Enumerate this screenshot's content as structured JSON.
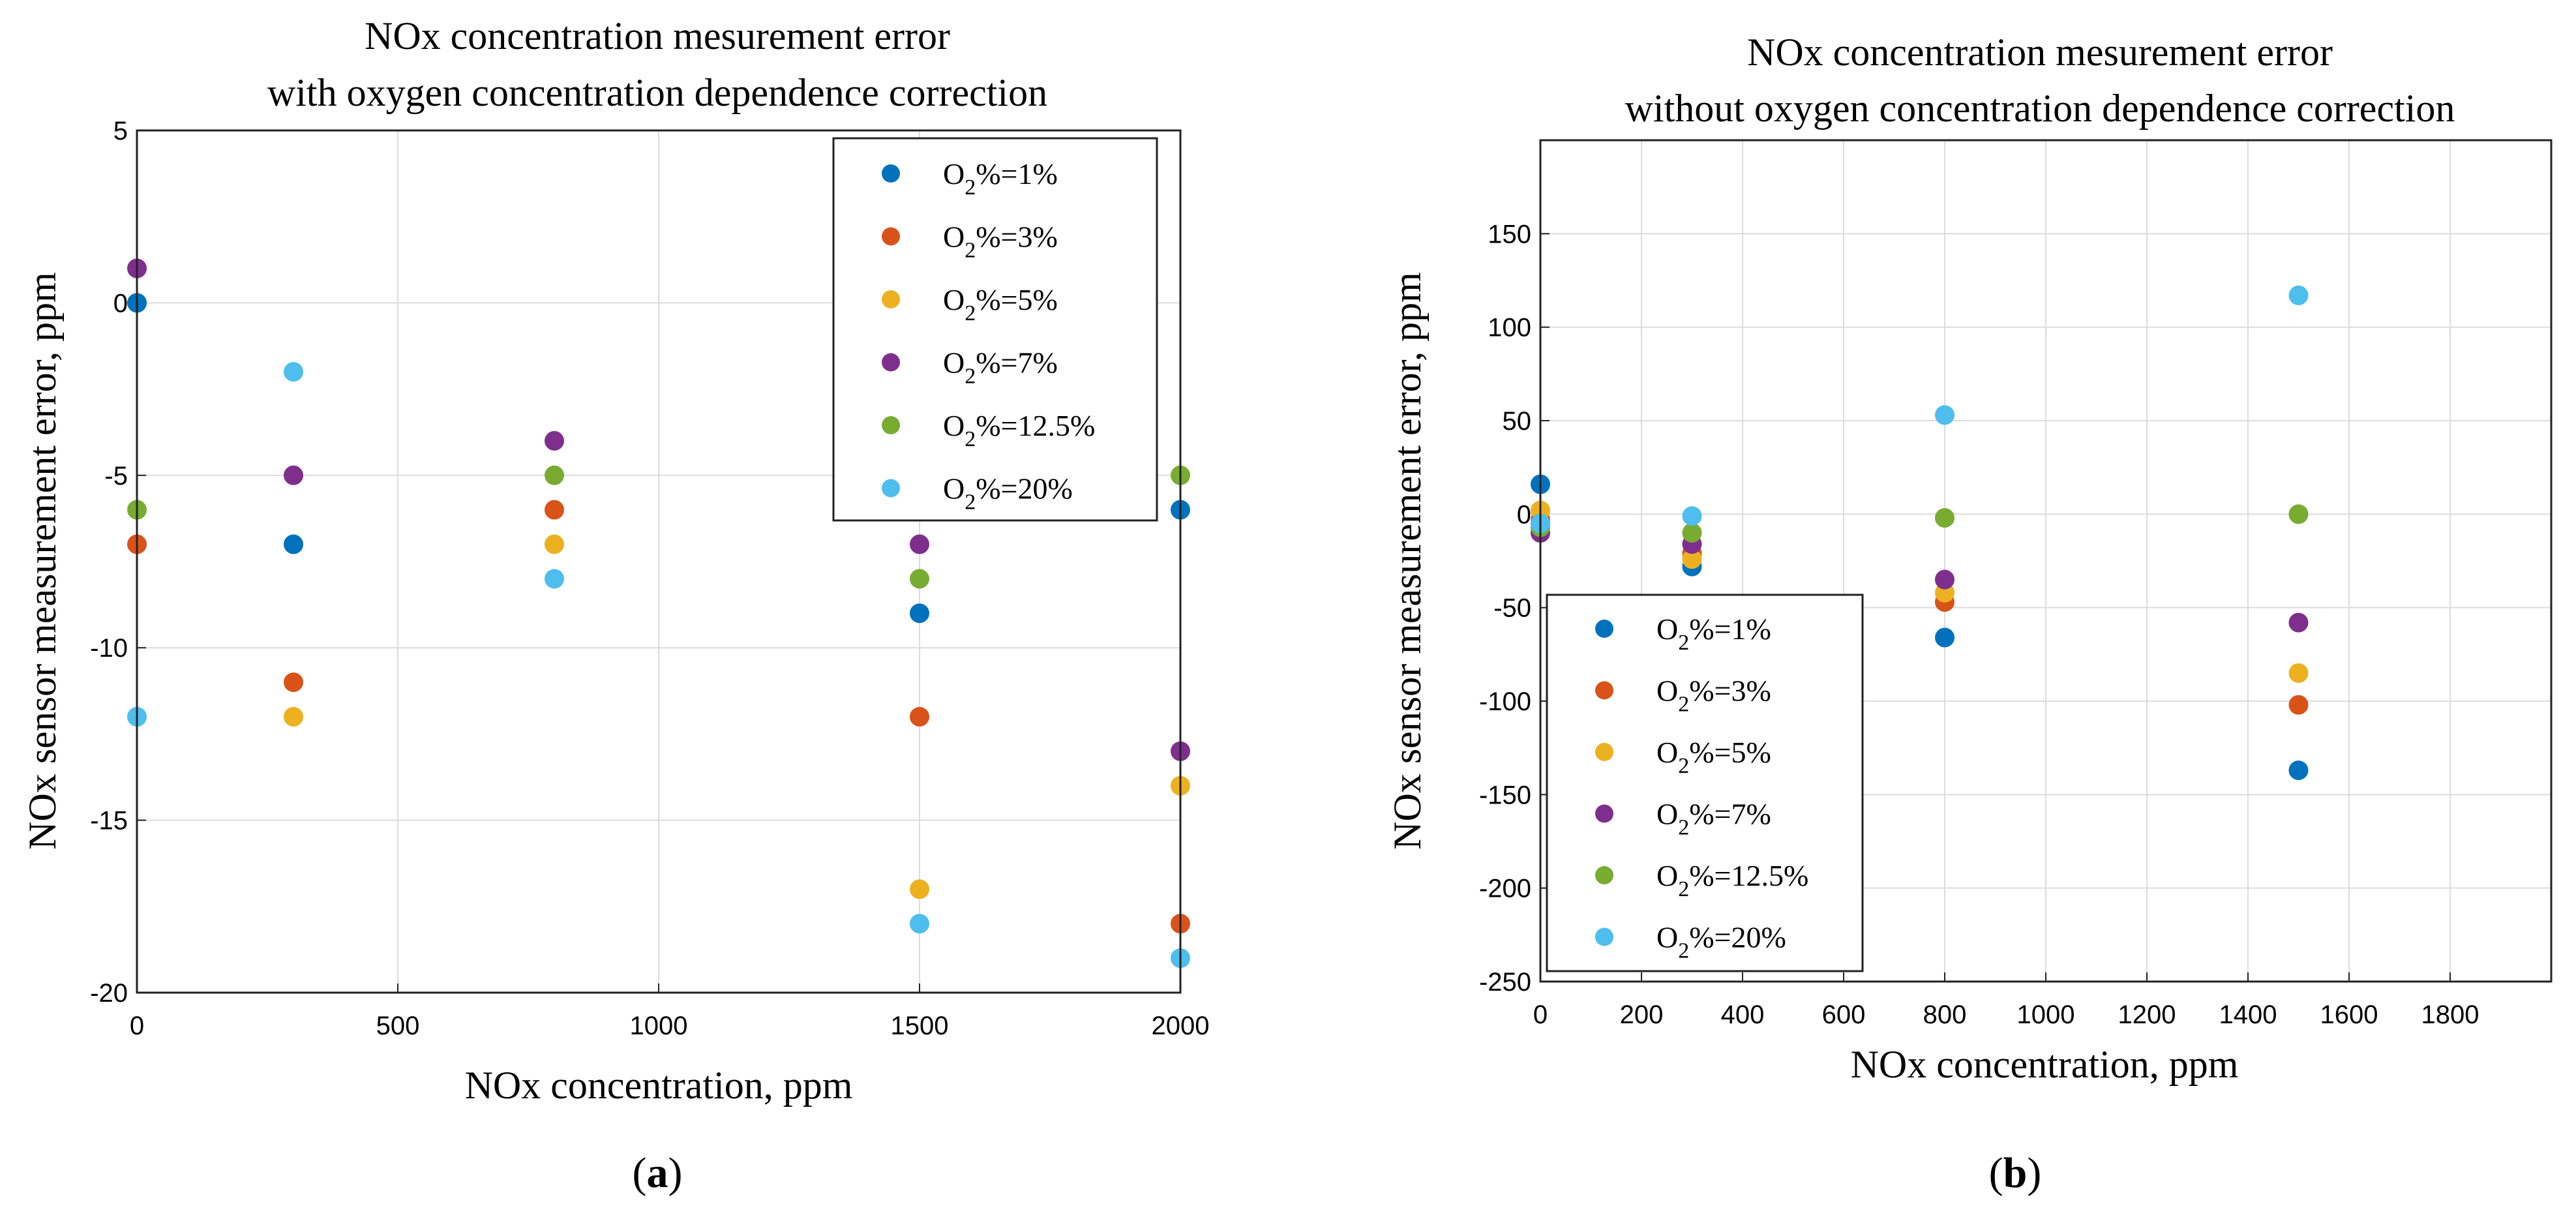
{
  "chart_data": [
    {
      "type": "scatter",
      "panel_label": "a",
      "title": [
        "NOx concentration mesurement error",
        "with oxygen concentration dependence correction"
      ],
      "xlabel": "NOx concentration, ppm",
      "ylabel": "NOx sensor measurement error, ppm",
      "xlim": [
        0,
        2000
      ],
      "ylim": [
        -20,
        5
      ],
      "xticks": [
        0,
        500,
        1000,
        1500,
        2000
      ],
      "yticks": [
        -20,
        -15,
        -10,
        -5,
        0,
        5
      ],
      "grid": true,
      "legend_position": "top-right",
      "series": [
        {
          "name": "O2%=1%",
          "label_main": "O",
          "label_sub": "2",
          "label_rest": "%=1%",
          "color": "#0072BD",
          "x": [
            0,
            300,
            1500,
            2000
          ],
          "y": [
            0,
            -7,
            -9,
            -6
          ]
        },
        {
          "name": "O2%=3%",
          "label_main": "O",
          "label_sub": "2",
          "label_rest": "%=3%",
          "color": "#D95319",
          "x": [
            0,
            300,
            800,
            1500,
            2000
          ],
          "y": [
            -7,
            -11,
            -6,
            -12,
            -18
          ]
        },
        {
          "name": "O2%=5%",
          "label_main": "O",
          "label_sub": "2",
          "label_rest": "%=5%",
          "color": "#EDB120",
          "x": [
            300,
            800,
            1500,
            2000
          ],
          "y": [
            -12,
            -7,
            -17,
            -14
          ]
        },
        {
          "name": "O2%=7%",
          "label_main": "O",
          "label_sub": "2",
          "label_rest": "%=7%",
          "color": "#7E2F8E",
          "x": [
            0,
            300,
            800,
            1500,
            2000
          ],
          "y": [
            1,
            -5,
            -4,
            -7,
            -13
          ]
        },
        {
          "name": "O2%=12.5%",
          "label_main": "O",
          "label_sub": "2",
          "label_rest": "%=12.5%",
          "color": "#77AC30",
          "x": [
            0,
            800,
            1500,
            2000
          ],
          "y": [
            -6,
            -5,
            -8,
            -5
          ]
        },
        {
          "name": "O2%=20%",
          "label_main": "O",
          "label_sub": "2",
          "label_rest": "%=20%",
          "color": "#4DBEEE",
          "x": [
            0,
            300,
            800,
            1500,
            2000
          ],
          "y": [
            -12,
            -2,
            -8,
            -18,
            -19
          ]
        }
      ]
    },
    {
      "type": "scatter",
      "panel_label": "b",
      "title": [
        "NOx concentration mesurement error",
        "without oxygen concentration dependence correction"
      ],
      "xlabel": "NOx concentration, ppm",
      "ylabel": "NOx sensor measurement error, ppm",
      "xlim": [
        0,
        2000
      ],
      "ylim": [
        -250,
        200
      ],
      "xticks": [
        0,
        200,
        400,
        600,
        800,
        1000,
        1200,
        1400,
        1600,
        1800
      ],
      "yticks": [
        -250,
        -200,
        -150,
        -100,
        -50,
        0,
        50,
        100,
        150
      ],
      "grid": true,
      "legend_position": "bottom-left",
      "series": [
        {
          "name": "O2%=1%",
          "label_main": "O",
          "label_sub": "2",
          "label_rest": "%=1%",
          "color": "#0072BD",
          "x": [
            0,
            300,
            800,
            1500
          ],
          "y": [
            16,
            -28,
            -66,
            -137
          ]
        },
        {
          "name": "O2%=3%",
          "label_main": "O",
          "label_sub": "2",
          "label_rest": "%=3%",
          "color": "#D95319",
          "x": [
            0,
            300,
            800,
            1500
          ],
          "y": [
            -3,
            -21,
            -47,
            -102
          ]
        },
        {
          "name": "O2%=5%",
          "label_main": "O",
          "label_sub": "2",
          "label_rest": "%=5%",
          "color": "#EDB120",
          "x": [
            0,
            300,
            800,
            1500
          ],
          "y": [
            2,
            -24,
            -42,
            -85
          ]
        },
        {
          "name": "O2%=7%",
          "label_main": "O",
          "label_sub": "2",
          "label_rest": "%=7%",
          "color": "#7E2F8E",
          "x": [
            0,
            300,
            800,
            1500
          ],
          "y": [
            -10,
            -16,
            -35,
            -58
          ]
        },
        {
          "name": "O2%=12.5%",
          "label_main": "O",
          "label_sub": "2",
          "label_rest": "%=12.5%",
          "color": "#77AC30",
          "x": [
            0,
            300,
            800,
            1500
          ],
          "y": [
            -7,
            -10,
            -2,
            0
          ]
        },
        {
          "name": "O2%=20%",
          "label_main": "O",
          "label_sub": "2",
          "label_rest": "%=20%",
          "color": "#4DBEEE",
          "x": [
            0,
            300,
            800,
            1500
          ],
          "y": [
            -5,
            -1,
            53,
            117
          ]
        }
      ]
    }
  ]
}
